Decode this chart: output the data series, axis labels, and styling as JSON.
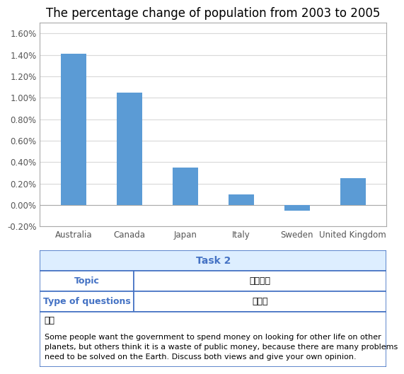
{
  "title": "The percentage change of population from 2003 to 2005",
  "categories": [
    "Australia",
    "Canada",
    "Japan",
    "Italy",
    "Sweden",
    "United Kingdom"
  ],
  "values": [
    0.0141,
    0.0105,
    0.0035,
    0.001,
    -0.0005,
    0.0025
  ],
  "bar_color": "#5B9BD5",
  "ylim": [
    -0.002,
    0.017
  ],
  "yticks": [
    -0.002,
    0.0,
    0.002,
    0.004,
    0.006,
    0.008,
    0.01,
    0.012,
    0.014,
    0.016
  ],
  "ytick_labels": [
    "-0.20%",
    "0.00%",
    "0.20%",
    "0.40%",
    "0.60%",
    "0.80%",
    "1.00%",
    "1.20%",
    "1.40%",
    "1.60%"
  ],
  "grid_color": "#D9D9D9",
  "background_color": "#FFFFFF",
  "chart_border_color": "#AAAAAA",
  "title_fontsize": 12,
  "tick_fontsize": 8.5,
  "task2_header": "Task 2",
  "task2_header_color": "#4472C4",
  "task2_bg_color": "#DDEEFF",
  "table_border_color": "#4472C4",
  "topic_label": "Topic",
  "topic_value": "政府职能",
  "question_type_label": "Type of questions",
  "question_type_value": "讨论类",
  "temu_label": "题目",
  "question_text": "Some people want the government to spend money on looking for other life on other\nplanets, but others think it is a waste of public money, because there are many problems\nneed to be solved on the Earth. Discuss both views and give your own opinion.",
  "col_split": 0.27
}
